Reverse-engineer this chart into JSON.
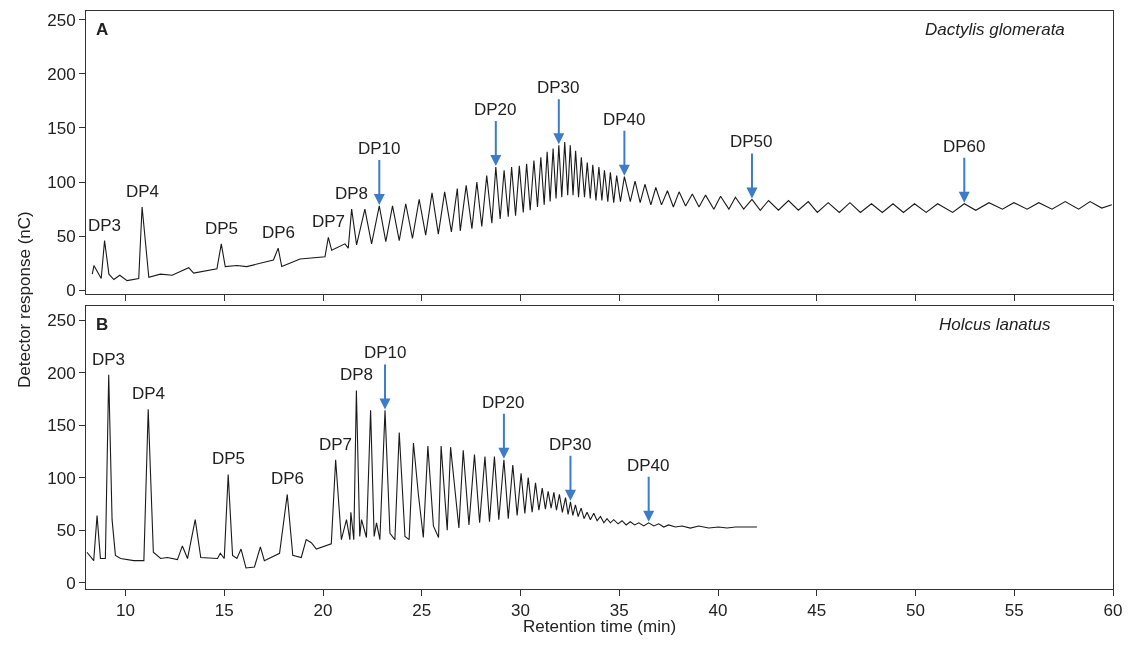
{
  "chart_data": [
    {
      "type": "line",
      "title": "A",
      "subtitle": "Dactylis glomerata",
      "ylabel": "Detector response (nC)",
      "xlim": [
        8,
        60
      ],
      "xticks": [
        10,
        15,
        20,
        25,
        30,
        35,
        40,
        45,
        50,
        55,
        60
      ],
      "ylim": [
        -3,
        258
      ],
      "yticks": [
        0,
        50,
        100,
        150,
        200,
        250
      ],
      "tick_labels": "y",
      "marker": "none",
      "line_style": "solid",
      "series": [
        {
          "color": "#1a1a1a",
          "x": [
            8.32,
            8.4,
            8.77,
            8.94,
            9.16,
            9.41,
            9.71,
            10.08,
            10.67,
            10.84,
            11.18,
            11.77,
            12.36,
            13.2,
            13.45,
            14.63,
            14.85,
            15.05,
            15.64,
            16.14,
            17.49,
            17.73,
            17.91,
            18.84,
            20.1,
            20.27,
            20.44,
            21.11,
            21.28,
            21.45,
            21.7,
            22.12,
            22.46,
            22.85,
            23.18,
            23.52,
            23.86,
            24.19,
            24.53,
            24.87,
            25.2,
            25.52,
            25.84,
            26.16,
            26.5,
            26.8,
            26.95,
            27.25,
            27.54,
            27.79,
            28.04,
            28.29,
            28.55,
            28.75,
            28.97,
            29.17,
            29.38,
            29.55,
            29.75,
            29.94,
            30.14,
            30.31,
            30.49,
            30.68,
            30.86,
            31.03,
            31.2,
            31.35,
            31.5,
            31.65,
            31.8,
            31.94,
            32.09,
            32.24,
            32.39,
            32.52,
            32.66,
            32.79,
            32.94,
            33.08,
            33.24,
            33.38,
            33.53,
            33.66,
            33.82,
            33.97,
            34.12,
            34.25,
            34.42,
            34.55,
            34.72,
            34.87,
            35.06,
            35.26,
            35.56,
            35.8,
            36.06,
            36.3,
            36.6,
            36.85,
            37.14,
            37.44,
            37.74,
            38.03,
            38.36,
            38.7,
            39.04,
            39.37,
            39.79,
            40.13,
            40.55,
            40.88,
            41.3,
            41.72,
            42.14,
            42.56,
            43.06,
            43.57,
            44.07,
            44.57,
            45.03,
            45.58,
            46.14,
            46.68,
            47.21,
            47.77,
            48.32,
            48.86,
            49.39,
            49.95,
            50.54,
            51.12,
            51.88,
            52.47,
            53.05,
            53.72,
            54.4,
            54.98,
            55.65,
            56.24,
            56.91,
            57.58,
            58.26,
            58.84,
            59.43,
            59.94
          ],
          "values": [
            15,
            23,
            11,
            46,
            15,
            10,
            14,
            9,
            11,
            77,
            12,
            15,
            14,
            21,
            16,
            20,
            43,
            22,
            23,
            22,
            28,
            39,
            22,
            29,
            31,
            49,
            37,
            43,
            39,
            75,
            42,
            75,
            43,
            78,
            45,
            78,
            46,
            80,
            48,
            84,
            51,
            90,
            52,
            91,
            54,
            94,
            55,
            97,
            57,
            100,
            59,
            106,
            62,
            114,
            66,
            111,
            68,
            114,
            69,
            115,
            72,
            117,
            74,
            120,
            77,
            123,
            79,
            128,
            82,
            131,
            85,
            134,
            86,
            137,
            88,
            134,
            88,
            129,
            86,
            123,
            86,
            118,
            85,
            116,
            83,
            114,
            83,
            111,
            82,
            109,
            81,
            106,
            82,
            105,
            82,
            101,
            81,
            98,
            79,
            95,
            79,
            92,
            77,
            91,
            78,
            89,
            77,
            88,
            75,
            87,
            75,
            86,
            75,
            84,
            74,
            83,
            74,
            83,
            74,
            82,
            72,
            81,
            72,
            81,
            72,
            80,
            72,
            80,
            72,
            80,
            72,
            80,
            72,
            80,
            74,
            81,
            75,
            81,
            75,
            81,
            75,
            82,
            75,
            82,
            76,
            79
          ]
        }
      ],
      "annotations": [
        {
          "text": "DP3",
          "x": 8.94,
          "y": 46
        },
        {
          "text": "DP4",
          "x": 10.84,
          "y": 77
        },
        {
          "text": "DP5",
          "x": 14.85,
          "y": 43
        },
        {
          "text": "DP6",
          "x": 17.73,
          "y": 39
        },
        {
          "text": "DP7",
          "x": 20.27,
          "y": 49
        },
        {
          "text": "DP8",
          "x": 21.45,
          "y": 75
        },
        {
          "text": "DP10",
          "x": 22.85,
          "y": 78
        },
        {
          "text": "DP20",
          "x": 28.75,
          "y": 114
        },
        {
          "text": "DP30",
          "x": 31.94,
          "y": 134
        },
        {
          "text": "DP40",
          "x": 35.26,
          "y": 105
        },
        {
          "text": "DP50",
          "x": 41.72,
          "y": 84
        },
        {
          "text": "DP60",
          "x": 52.47,
          "y": 80
        }
      ]
    },
    {
      "type": "line",
      "title": "B",
      "subtitle": "Holcus lanatus",
      "xlabel": "Retention time (min)",
      "xlim": [
        8,
        60
      ],
      "xticks": [
        10,
        15,
        20,
        25,
        30,
        35,
        40,
        45,
        50,
        55,
        60
      ],
      "ylim": [
        -6,
        263
      ],
      "yticks": [
        0,
        50,
        100,
        150,
        200,
        250
      ],
      "marker": "none",
      "line_style": "solid",
      "series": [
        {
          "color": "#1a1a1a",
          "x": [
            8.05,
            8.39,
            8.56,
            8.73,
            8.98,
            9.15,
            9.32,
            9.49,
            9.75,
            10.42,
            10.93,
            11.15,
            11.41,
            11.78,
            12.12,
            12.63,
            12.88,
            13.14,
            13.53,
            13.81,
            14.66,
            14.8,
            15.0,
            15.2,
            15.42,
            15.64,
            15.85,
            16.1,
            16.53,
            16.83,
            17.03,
            17.8,
            18.19,
            18.47,
            18.9,
            19.15,
            19.41,
            19.66,
            20.42,
            20.64,
            20.93,
            21.19,
            21.36,
            21.41,
            21.56,
            21.69,
            21.86,
            21.95,
            22.2,
            22.41,
            22.59,
            22.71,
            22.88,
            23.14,
            23.39,
            23.64,
            23.86,
            24.15,
            24.36,
            24.58,
            24.83,
            25.08,
            25.31,
            25.59,
            25.85,
            25.98,
            26.29,
            26.46,
            26.88,
            27.1,
            27.39,
            27.67,
            27.93,
            28.2,
            28.43,
            28.68,
            28.9,
            29.16,
            29.38,
            29.61,
            29.83,
            30.03,
            30.22,
            30.39,
            30.59,
            30.76,
            30.93,
            31.1,
            31.26,
            31.4,
            31.55,
            31.69,
            31.82,
            31.97,
            32.12,
            32.28,
            32.41,
            32.53,
            32.65,
            32.78,
            32.92,
            33.07,
            33.22,
            33.37,
            33.54,
            33.71,
            33.88,
            34.05,
            34.22,
            34.38,
            34.55,
            34.72,
            34.94,
            35.14,
            35.35,
            35.56,
            35.78,
            35.99,
            36.24,
            36.49,
            36.75,
            37.0,
            37.25,
            37.5,
            37.84,
            38.18,
            38.6,
            39.02,
            39.53,
            40.03,
            40.46,
            40.88,
            41.97
          ],
          "values": [
            29,
            21,
            64,
            23,
            23,
            198,
            60,
            26,
            23,
            21,
            21,
            165,
            29,
            23,
            24,
            22,
            35,
            23,
            60,
            24,
            23,
            28,
            23,
            103,
            26,
            23,
            32,
            14,
            15,
            34,
            21,
            28,
            84,
            26,
            24,
            41,
            38,
            32,
            37,
            117,
            41,
            60,
            41,
            67,
            41,
            183,
            44,
            60,
            43,
            164,
            44,
            57,
            41,
            164,
            47,
            41,
            143,
            44,
            41,
            133,
            84,
            43,
            130,
            54,
            43,
            130,
            50,
            129,
            52,
            126,
            55,
            122,
            57,
            120,
            58,
            120,
            60,
            117,
            61,
            112,
            64,
            104,
            66,
            100,
            67,
            95,
            69,
            90,
            70,
            87,
            71,
            86,
            69,
            84,
            67,
            81,
            65,
            77,
            64,
            74,
            63,
            71,
            61,
            67,
            60,
            66,
            59,
            63,
            57,
            61,
            57,
            60,
            56,
            59,
            55,
            58,
            55,
            57,
            54,
            57,
            54,
            56,
            53,
            55,
            53,
            54,
            52,
            54,
            52,
            53,
            52,
            53,
            53
          ]
        }
      ],
      "annotations": [
        {
          "text": "DP3",
          "x": 9.15,
          "y": 198
        },
        {
          "text": "DP4",
          "x": 11.15,
          "y": 165
        },
        {
          "text": "DP5",
          "x": 15.2,
          "y": 103
        },
        {
          "text": "DP6",
          "x": 18.19,
          "y": 84
        },
        {
          "text": "DP7",
          "x": 20.64,
          "y": 117
        },
        {
          "text": "DP8",
          "x": 21.69,
          "y": 183
        },
        {
          "text": "DP10",
          "x": 23.14,
          "y": 164
        },
        {
          "text": "DP20",
          "x": 29.16,
          "y": 117
        },
        {
          "text": "DP30",
          "x": 32.53,
          "y": 77
        },
        {
          "text": "DP40",
          "x": 36.49,
          "y": 57
        }
      ]
    }
  ]
}
